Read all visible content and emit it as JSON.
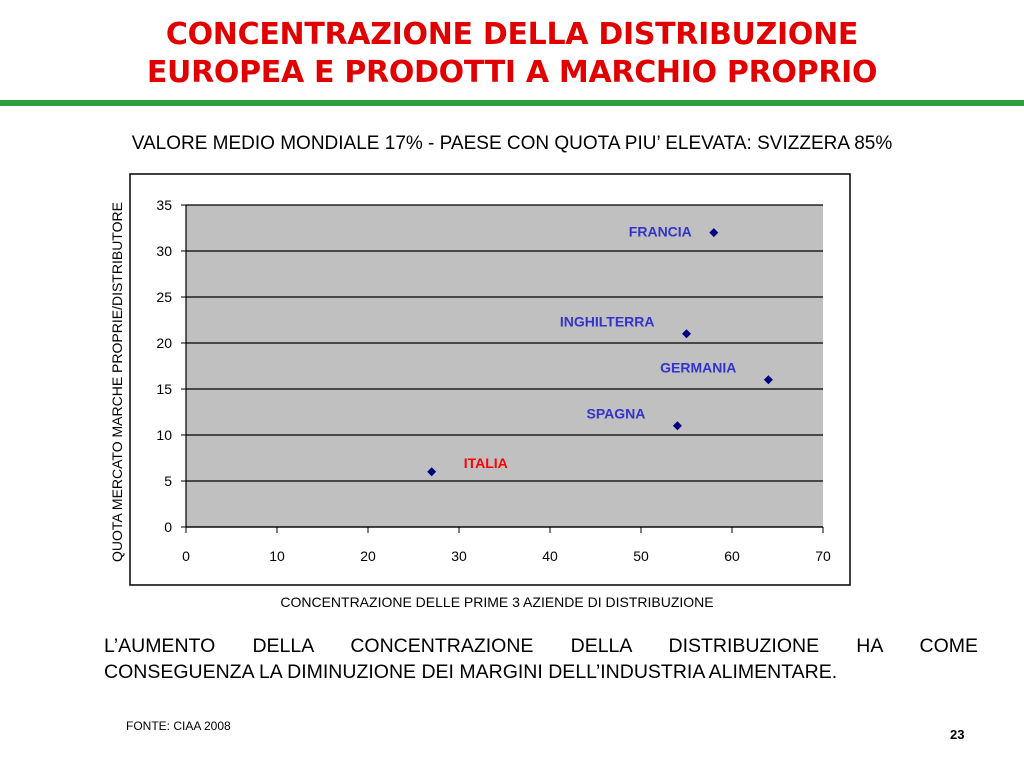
{
  "slide": {
    "title_line1": "CONCENTRAZIONE DELLA DISTRIBUZIONE",
    "title_line2": "EUROPEA E PRODOTTI A MARCHIO PROPRIO",
    "subtitle": "VALORE MEDIO MONDIALE 17% - PAESE CON QUOTA PIU’ ELEVATA: SVIZZERA 85%",
    "body_line1": "L’AUMENTO DELLA CONCENTRAZIONE DELLA DISTRIBUZIONE HA COME",
    "body_line2": "CONSEGUENZA LA DIMINUZIONE DEI MARGINI DELL’INDUSTRIA ALIMENTARE.",
    "source": "FONTE: CIAA 2008",
    "page_number": "23"
  },
  "colors": {
    "title": "#e00000",
    "rule": "#2e9e3e",
    "plot_area": "#c0c0c0",
    "marker": "#000080",
    "label_default": "#3333cc",
    "label_highlight": "#ff0000"
  },
  "chart_data": {
    "type": "scatter",
    "xlabel": "CONCENTRAZIONE DELLE PRIME 3 AZIENDE DI DISTRIBUZIONE",
    "ylabel": "QUOTA MERCATO MARCHE PROPRIE/DISTRIBUTORE",
    "xlim": [
      0,
      70
    ],
    "ylim": [
      0,
      35
    ],
    "xticks": [
      0,
      10,
      20,
      30,
      40,
      50,
      60,
      70
    ],
    "yticks": [
      0,
      5,
      10,
      15,
      20,
      25,
      30,
      35
    ],
    "grid": "horizontal",
    "marker": "diamond",
    "points": [
      {
        "label": "FRANCIA",
        "x": 58,
        "y": 32,
        "highlight": false,
        "label_side": "left"
      },
      {
        "label": "INGHILTERRA",
        "x": 55,
        "y": 21,
        "highlight": false,
        "label_side": "above-left"
      },
      {
        "label": "GERMANIA",
        "x": 64,
        "y": 16,
        "highlight": false,
        "label_side": "above-left"
      },
      {
        "label": "SPAGNA",
        "x": 54,
        "y": 11,
        "highlight": false,
        "label_side": "above-left"
      },
      {
        "label": "ITALIA",
        "x": 27,
        "y": 6,
        "highlight": true,
        "label_side": "above-right"
      }
    ]
  }
}
